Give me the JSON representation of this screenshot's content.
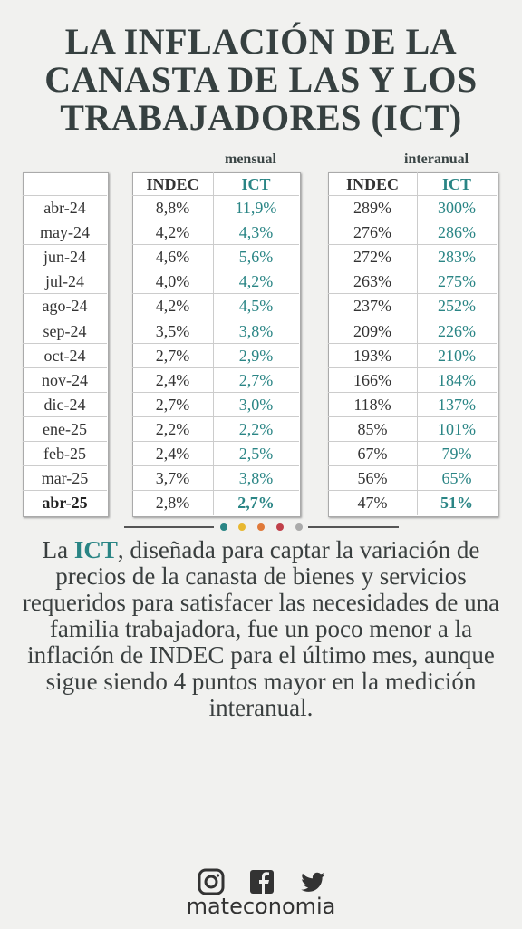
{
  "title": [
    "LA INFLACIÓN DE LA",
    "CANASTA DE LAS Y LOS",
    "TRABAJADORES (ICT)"
  ],
  "table": {
    "groups": [
      "mensual",
      "interanual"
    ],
    "headers": [
      "INDEC",
      "ICT",
      "INDEC",
      "ICT"
    ],
    "rows": [
      [
        "abr-24",
        "8,8%",
        "11,9%",
        "289%",
        "300%"
      ],
      [
        "may-24",
        "4,2%",
        "4,3%",
        "276%",
        "286%"
      ],
      [
        "jun-24",
        "4,6%",
        "5,6%",
        "272%",
        "283%"
      ],
      [
        "jul-24",
        "4,0%",
        "4,2%",
        "263%",
        "275%"
      ],
      [
        "ago-24",
        "4,2%",
        "4,5%",
        "237%",
        "252%"
      ],
      [
        "sep-24",
        "3,5%",
        "3,8%",
        "209%",
        "226%"
      ],
      [
        "oct-24",
        "2,7%",
        "2,9%",
        "193%",
        "210%"
      ],
      [
        "nov-24",
        "2,4%",
        "2,7%",
        "166%",
        "184%"
      ],
      [
        "dic-24",
        "2,7%",
        "3,0%",
        "118%",
        "137%"
      ],
      [
        "ene-25",
        "2,2%",
        "2,2%",
        "85%",
        "101%"
      ],
      [
        "feb-25",
        "2,4%",
        "2,5%",
        "67%",
        "79%"
      ],
      [
        "mar-25",
        "3,7%",
        "3,8%",
        "56%",
        "65%"
      ],
      [
        "abr-25",
        "2,8%",
        "2,7%",
        "47%",
        "51%"
      ]
    ]
  },
  "body": {
    "before": "La ",
    "highlight": "ICT",
    "after": ", diseñada para captar la variación de precios de la canasta de bienes y servicios requeridos para satisfacer las necesidades de una familia trabajadora, fue un poco menor a la inflación de INDEC para el último mes, aunque sigue siendo 4 puntos mayor en la medición interanual."
  },
  "footer": {
    "brand": "mateconomia"
  }
}
